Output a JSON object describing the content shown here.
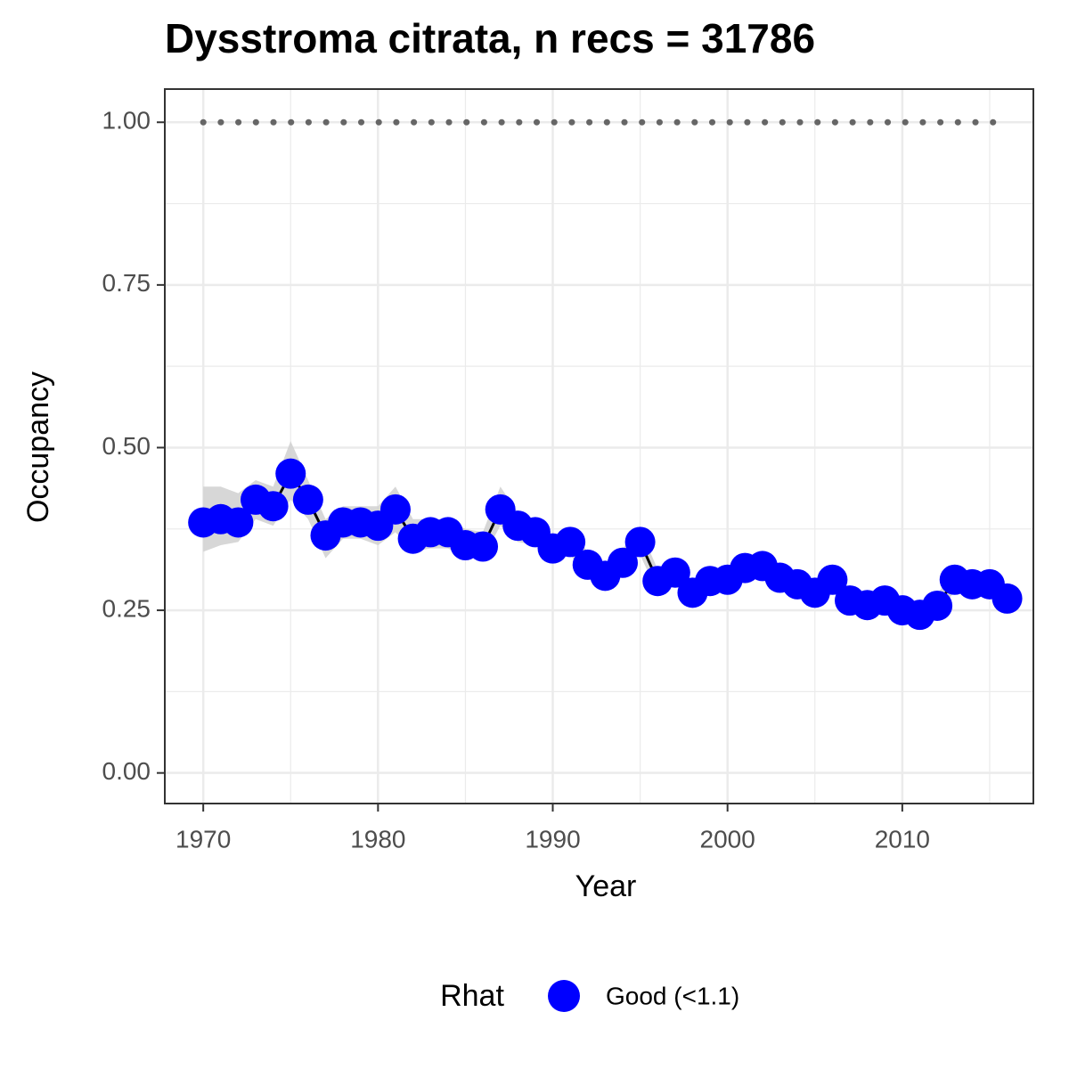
{
  "chart_data": {
    "type": "line",
    "title": "Dysstroma citrata, n recs = 31786",
    "x_label": "Year",
    "y_label": "Occupancy",
    "legend_title": "Rhat",
    "x": [
      1970,
      1971,
      1972,
      1973,
      1974,
      1975,
      1976,
      1977,
      1978,
      1979,
      1980,
      1981,
      1982,
      1983,
      1984,
      1985,
      1986,
      1987,
      1988,
      1989,
      1990,
      1991,
      1992,
      1993,
      1994,
      1995,
      1996,
      1997,
      1998,
      1999,
      2000,
      2001,
      2002,
      2003,
      2004,
      2005,
      2006,
      2007,
      2008,
      2009,
      2010,
      2011,
      2012,
      2013,
      2014,
      2015,
      2016
    ],
    "series": [
      {
        "name": "Good (<1.1)",
        "color": "#0000ff",
        "values": [
          0.385,
          0.39,
          0.385,
          0.42,
          0.41,
          0.46,
          0.42,
          0.365,
          0.385,
          0.385,
          0.38,
          0.405,
          0.36,
          0.37,
          0.37,
          0.35,
          0.348,
          0.405,
          0.38,
          0.37,
          0.345,
          0.355,
          0.32,
          0.303,
          0.323,
          0.355,
          0.295,
          0.308,
          0.277,
          0.295,
          0.297,
          0.315,
          0.318,
          0.3,
          0.29,
          0.277,
          0.297,
          0.265,
          0.258,
          0.265,
          0.25,
          0.243,
          0.257,
          0.297,
          0.29,
          0.29,
          0.268
        ]
      }
    ],
    "ribbon": {
      "color": "#d0d0d0",
      "lower": [
        0.34,
        0.35,
        0.355,
        0.39,
        0.38,
        0.42,
        0.39,
        0.33,
        0.36,
        0.36,
        0.35,
        0.37,
        0.34,
        0.345,
        0.345,
        0.33,
        0.33,
        0.38,
        0.355,
        0.35,
        0.325,
        0.335,
        0.3,
        0.285,
        0.305,
        0.335,
        0.277,
        0.29,
        0.26,
        0.277,
        0.28,
        0.297,
        0.3,
        0.282,
        0.272,
        0.26,
        0.28,
        0.248,
        0.24,
        0.248,
        0.233,
        0.226,
        0.24,
        0.28,
        0.272,
        0.272,
        0.25
      ],
      "upper": [
        0.44,
        0.44,
        0.43,
        0.45,
        0.44,
        0.51,
        0.45,
        0.39,
        0.41,
        0.41,
        0.41,
        0.44,
        0.39,
        0.39,
        0.39,
        0.375,
        0.37,
        0.44,
        0.4,
        0.39,
        0.365,
        0.375,
        0.34,
        0.32,
        0.345,
        0.375,
        0.313,
        0.326,
        0.294,
        0.313,
        0.314,
        0.333,
        0.336,
        0.318,
        0.308,
        0.294,
        0.314,
        0.282,
        0.276,
        0.282,
        0.267,
        0.26,
        0.274,
        0.314,
        0.308,
        0.308,
        0.286
      ]
    },
    "reference_line": 1,
    "xlim": [
      1967.8,
      2017.5
    ],
    "ylim": [
      -0.047,
      1.051
    ],
    "xticks": [
      1970,
      1980,
      1990,
      2000,
      2010
    ],
    "xminor": [
      1975,
      1985,
      1995,
      2005,
      2015
    ],
    "yticks": [
      {
        "value": 0,
        "label": "0.00"
      },
      {
        "value": 0.25,
        "label": "0.25"
      },
      {
        "value": 0.5,
        "label": "0.50"
      },
      {
        "value": 0.75,
        "label": "0.75"
      },
      {
        "value": 1,
        "label": "1.00"
      }
    ],
    "yminor": [
      0.125,
      0.375,
      0.625,
      0.875
    ],
    "grid": true,
    "legend_position": "bottom"
  }
}
